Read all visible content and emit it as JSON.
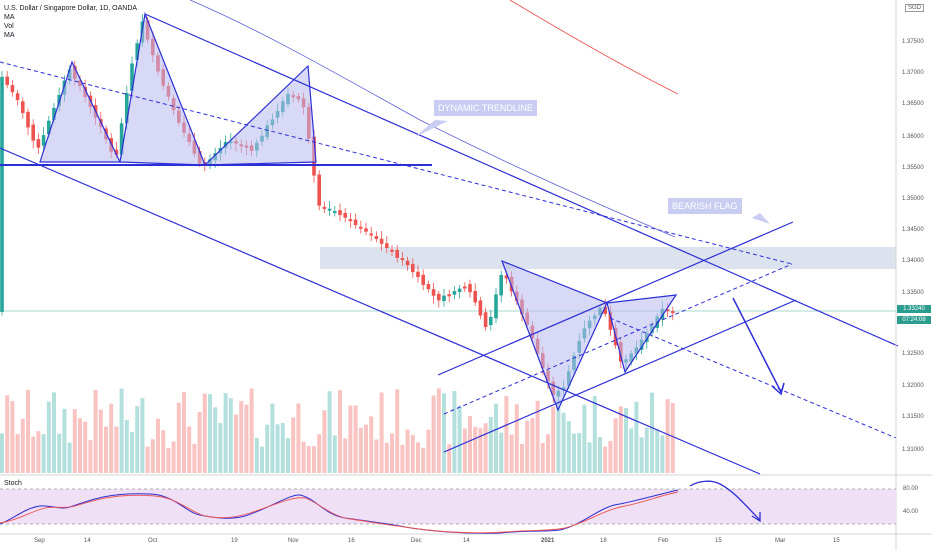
{
  "header": {
    "title": "U.S. Dollar / Singapore Dollar, 1D, OANDA",
    "indicators": [
      "MA",
      "Vol",
      "MA"
    ]
  },
  "currency_badge": "SGD",
  "annotations": {
    "dynamic_trendline": "DYNAMIC TRENDLINE",
    "bearish_flag": "BEARISH FLAG"
  },
  "price_labels": [
    "1.37500",
    "1.37000",
    "1.36500",
    "1.36000",
    "1.35500",
    "1.35000",
    "1.34500",
    "1.34000",
    "1.33500",
    "1.32500",
    "1.32000",
    "1.31500",
    "1.31000"
  ],
  "current_price": {
    "price": "1.33240",
    "countdown": "07:24:08"
  },
  "stoch": {
    "title": "Stoch",
    "levels": [
      "80.00",
      "40.00"
    ]
  },
  "time_labels": [
    "Sep",
    "14",
    "Oct",
    "19",
    "Nov",
    "16",
    "Dec",
    "14",
    "2021",
    "18",
    "Feb",
    "15",
    "Mar",
    "15"
  ],
  "colors": {
    "up": "#26a69a",
    "down": "#ef5350",
    "pattern": "#2c2ed6",
    "pattern_fill": "#b8b9f0",
    "zone": "#dde3ee"
  }
}
